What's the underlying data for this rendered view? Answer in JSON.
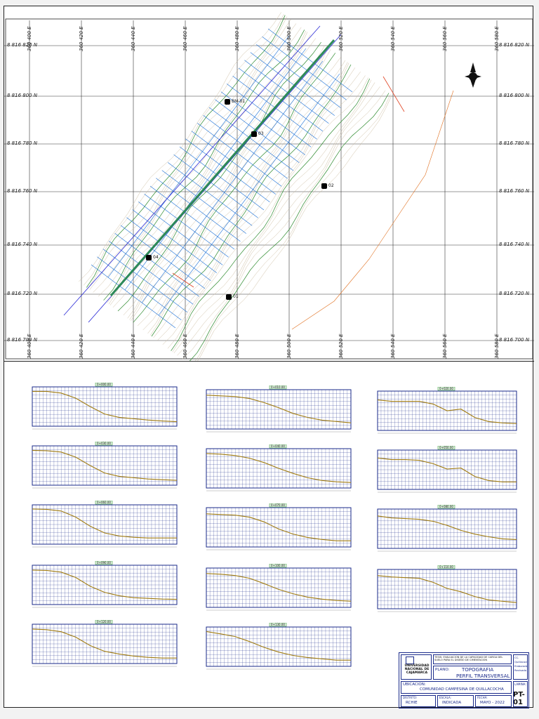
{
  "plan": {
    "easting_labels": [
      "360 400 E",
      "360 420 E",
      "360 440 E",
      "360 460 E",
      "360 480 E",
      "360 500 E",
      "360 520 E",
      "360 540 E",
      "360 560 E",
      "360 580 E"
    ],
    "northing_labels": [
      "8 816 820 N",
      "8 816 800 N",
      "8 816 780 N",
      "8 816 760 N",
      "8 816 740 N",
      "8 816 720 N",
      "8 816 700 N"
    ],
    "benchmarks": [
      "BM-01",
      "03",
      "02",
      "04",
      "01"
    ]
  },
  "profiles": [
    {
      "label": "0+000.00",
      "shape": [
        0.05,
        0.05,
        0.1,
        0.25,
        0.5,
        0.72,
        0.82,
        0.86,
        0.9,
        0.93,
        0.95
      ]
    },
    {
      "label": "0+010.00",
      "shape": [
        0.08,
        0.1,
        0.12,
        0.18,
        0.3,
        0.45,
        0.62,
        0.74,
        0.82,
        0.86,
        0.9
      ]
    },
    {
      "label": "0+020.00",
      "shape": [
        0.18,
        0.22,
        0.22,
        0.22,
        0.3,
        0.5,
        0.45,
        0.7,
        0.82,
        0.86,
        0.88
      ]
    },
    {
      "label": "0+030.00",
      "shape": [
        0.05,
        0.06,
        0.1,
        0.25,
        0.5,
        0.72,
        0.82,
        0.86,
        0.9,
        0.92,
        0.94
      ]
    },
    {
      "label": "0+040.00",
      "shape": [
        0.06,
        0.08,
        0.12,
        0.2,
        0.33,
        0.5,
        0.65,
        0.78,
        0.86,
        0.9,
        0.92
      ]
    },
    {
      "label": "0+050.00",
      "shape": [
        0.15,
        0.2,
        0.2,
        0.22,
        0.32,
        0.48,
        0.45,
        0.7,
        0.82,
        0.86,
        0.86
      ]
    },
    {
      "label": "0+060.00",
      "shape": [
        0.04,
        0.05,
        0.1,
        0.28,
        0.55,
        0.75,
        0.84,
        0.88,
        0.9,
        0.9,
        0.9
      ]
    },
    {
      "label": "0+070.00",
      "shape": [
        0.1,
        0.12,
        0.14,
        0.2,
        0.34,
        0.55,
        0.7,
        0.8,
        0.86,
        0.9,
        0.9
      ]
    },
    {
      "label": "0+080.00",
      "shape": [
        0.12,
        0.18,
        0.2,
        0.22,
        0.28,
        0.4,
        0.55,
        0.66,
        0.74,
        0.8,
        0.82
      ]
    },
    {
      "label": "0+090.00",
      "shape": [
        0.06,
        0.07,
        0.12,
        0.28,
        0.54,
        0.72,
        0.82,
        0.88,
        0.9,
        0.92,
        0.93
      ]
    },
    {
      "label": "0+100.00",
      "shape": [
        0.08,
        0.1,
        0.14,
        0.22,
        0.38,
        0.55,
        0.68,
        0.78,
        0.84,
        0.88,
        0.9
      ]
    },
    {
      "label": "0+110.00",
      "shape": [
        0.1,
        0.14,
        0.16,
        0.18,
        0.3,
        0.48,
        0.58,
        0.72,
        0.82,
        0.86,
        0.9
      ]
    },
    {
      "label": "0+120.00",
      "shape": [
        0.06,
        0.08,
        0.14,
        0.3,
        0.55,
        0.72,
        0.8,
        0.86,
        0.9,
        0.92,
        0.92
      ]
    },
    {
      "label": "0+130.00",
      "shape": [
        0.05,
        0.12,
        0.2,
        0.35,
        0.52,
        0.66,
        0.76,
        0.82,
        0.86,
        0.9,
        0.9
      ]
    }
  ],
  "title_block": {
    "university": "UNIVERSIDAD NACIONAL DE CAJAMARCA",
    "thesis": "TESIS: EVALUACION DE LA CAPACIDAD DE CARGA DEL SUELO PARA EL DISEÑO DE CIMENTACION",
    "plan_label": "PLANO:",
    "plan_title_1": "TOPOGRAFIA",
    "plan_title_2": "PERFIL TRANSVERSAL",
    "location_label": "UBICACION:",
    "location": "COMUNIDAD CAMPESINA DE QUILLACOCHA",
    "district_label": "DISTRITO:",
    "district": "RCHIE",
    "scale_label": "ESCALA:",
    "scale": "INDICADA",
    "date_label": "FECHA:",
    "date": "MAYO - 2022",
    "sheet_label": "LAMINA:",
    "sheet": "PT-01",
    "side_1": "CC. Quillacocha",
    "side_2": "Elaborado",
    "side_3": "Revisado"
  },
  "colors": {
    "grid": "#333333",
    "contour_green": "#2d8a2d",
    "contour_tan": "#c8b89a",
    "section_blue": "#1a6fd6",
    "axis_blue": "#2b2bd6",
    "road": "#2e8b57",
    "profile_line": "#a07b10",
    "profile_grid": "#1a2a8a"
  }
}
